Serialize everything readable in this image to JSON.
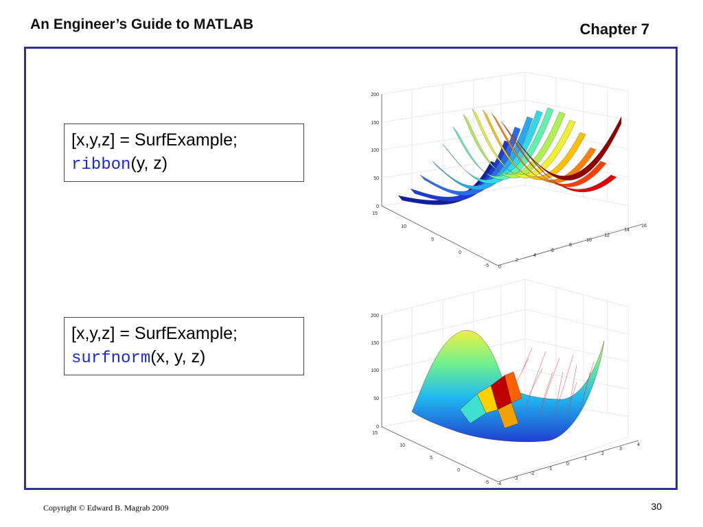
{
  "header": {
    "title": "An Engineer’s Guide to MATLAB",
    "chapter": "Chapter 7"
  },
  "example1": {
    "line1": "[x,y,z] = SurfExample;",
    "func": "ribbon",
    "args": "(y, z)"
  },
  "example2": {
    "line1": "[x,y,z] = SurfExample;",
    "func": "surfnorm",
    "args": "(x, y, z)"
  },
  "plot1": {
    "z_ticks": [
      "0",
      "50",
      "100",
      "150",
      "200"
    ],
    "y_ticks": [
      "-5",
      "0",
      "5",
      "10",
      "15"
    ],
    "x_ticks": [
      "0",
      "2",
      "4",
      "6",
      "8",
      "10",
      "12",
      "14",
      "16"
    ]
  },
  "plot2": {
    "z_ticks": [
      "0",
      "50",
      "100",
      "150",
      "200"
    ],
    "y_ticks": [
      "-5",
      "0",
      "5",
      "10",
      "15"
    ],
    "x_ticks": [
      "-4",
      "-3",
      "-2",
      "-1",
      "0",
      "1",
      "2",
      "3",
      "4"
    ]
  },
  "footer": {
    "copyright": "Copyright © Edward B. Magrab 2009",
    "page": "30"
  }
}
